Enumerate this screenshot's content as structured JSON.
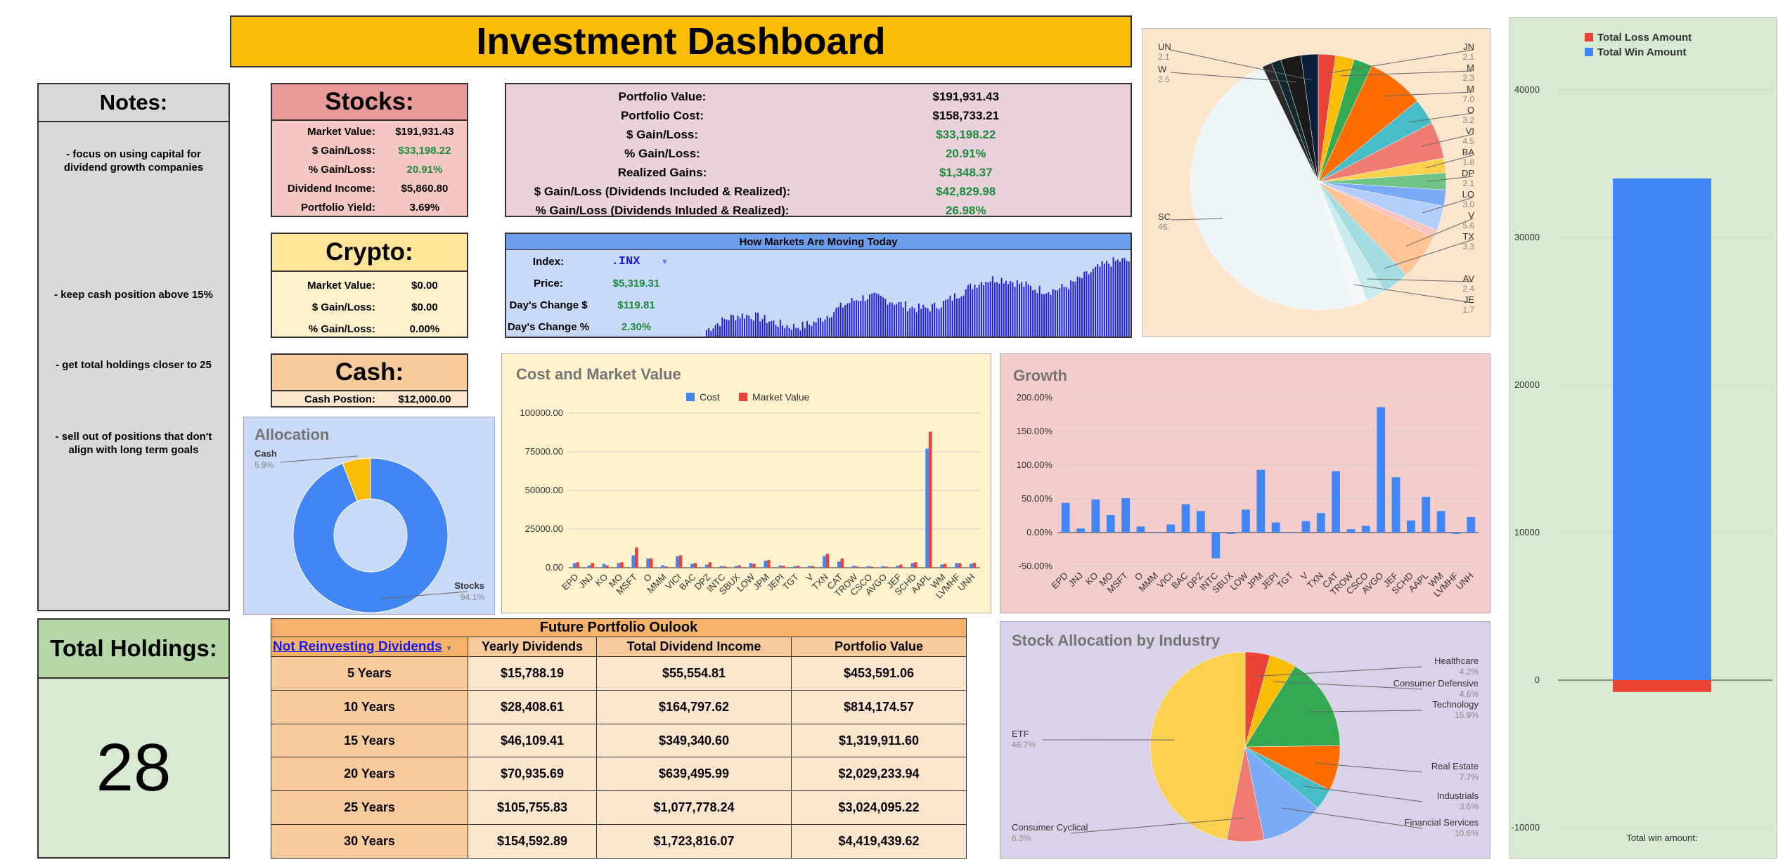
{
  "title": "Investment Dashboard",
  "notes": {
    "heading": "Notes:",
    "items": [
      "- focus on using capital for dividend growth companies",
      "- keep cash position above 15%",
      "- get total holdings closer to 25",
      "- sell out of positions that don't align with long term goals"
    ]
  },
  "total_holdings": {
    "label": "Total Holdings:",
    "value": "28"
  },
  "stocks": {
    "heading": "Stocks:",
    "rows": [
      {
        "k": "Market Value:",
        "v": "$191,931.43"
      },
      {
        "k": "$ Gain/Loss:",
        "v": "$33,198.22"
      },
      {
        "k": "% Gain/Loss:",
        "v": "20.91%"
      },
      {
        "k": "Dividend Income:",
        "v": "$5,860.80"
      },
      {
        "k": "Portfolio Yield:",
        "v": "3.69%"
      }
    ]
  },
  "crypto": {
    "heading": "Crypto:",
    "rows": [
      {
        "k": "Market Value:",
        "v": "$0.00"
      },
      {
        "k": "$ Gain/Loss:",
        "v": "$0.00"
      },
      {
        "k": "% Gain/Loss:",
        "v": "0.00%"
      }
    ]
  },
  "cash": {
    "heading": "Cash:",
    "k": "Cash Postion:",
    "v": "$12,000.00"
  },
  "portfolio": {
    "rows": [
      {
        "k": "Portfolio Value:",
        "v": "$191,931.43"
      },
      {
        "k": "Portfolio Cost:",
        "v": "$158,733.21"
      },
      {
        "k": "$ Gain/Loss:",
        "v": "$33,198.22"
      },
      {
        "k": "% Gain/Loss:",
        "v": "20.91%"
      },
      {
        "k": "Realized Gains:",
        "v": "$1,348.37"
      },
      {
        "k": "$ Gain/Loss (Dividends Included & Realized):",
        "v": "$42,829.98"
      },
      {
        "k": "% Gain/Loss (Dividends Inluded & Realized):",
        "v": "26.98%"
      }
    ]
  },
  "markets": {
    "title": "How Markets Are Moving Today",
    "rows": [
      {
        "k": "Index:",
        "v": ".INX"
      },
      {
        "k": "Price:",
        "v": "$5,319.31"
      },
      {
        "k": "Day's Change $",
        "v": "$119.81"
      },
      {
        "k": "Day's Change %",
        "v": "2.30%"
      }
    ]
  },
  "future": {
    "title": "Future Portfolio Oulook",
    "dropdown": "Not Reinvesting Dividends",
    "headers": [
      "Yearly Dividends",
      "Total Dividend Income",
      "Portfolio Value"
    ],
    "rows": [
      [
        "5 Years",
        "$15,788.19",
        "$55,554.81",
        "$453,591.06"
      ],
      [
        "10 Years",
        "$28,408.61",
        "$164,797.62",
        "$814,174.57"
      ],
      [
        "15 Years",
        "$46,109.41",
        "$349,340.60",
        "$1,319,911.60"
      ],
      [
        "20 Years",
        "$70,935.69",
        "$639,495.99",
        "$2,029,233.94"
      ],
      [
        "25 Years",
        "$105,755.83",
        "$1,077,778.24",
        "$3,024,095.22"
      ],
      [
        "30 Years",
        "$154,592.89",
        "$1,723,816.07",
        "$4,419,439.62"
      ]
    ]
  },
  "colors": {
    "blue": "#4285f4",
    "red": "#ea4335",
    "yellow": "#fbbc04",
    "green": "#34a853",
    "market_bar": "#1a1ae6"
  },
  "chart_data": [
    {
      "type": "pie",
      "id": "allocation",
      "title": "Allocation",
      "donut": true,
      "slices": [
        {
          "label": "Cash",
          "value": 5.9,
          "pct_label": "5.9%",
          "color": "#fbbc04"
        },
        {
          "label": "Stocks",
          "value": 94.1,
          "pct_label": "94.1%",
          "color": "#4285f4"
        }
      ]
    },
    {
      "type": "bar",
      "id": "cost_market",
      "title": "Cost and Market Value",
      "legend": "top",
      "ylim": [
        0,
        100000
      ],
      "yticks": [
        "0.00",
        "25000.00",
        "50000.00",
        "75000.00",
        "100000.00"
      ],
      "categories": [
        "EPD",
        "JNJ",
        "KO",
        "MO",
        "MSFT",
        "O",
        "MMM",
        "VICI",
        "BAC",
        "DPZ",
        "INTC",
        "SBUX",
        "LOW",
        "JPM",
        "JEPI",
        "TGT",
        "V",
        "TXN",
        "CAT",
        "TROW",
        "CSCO",
        "AVGO",
        "JEF",
        "SCHD",
        "AAPL",
        "WM",
        "LVMHF",
        "UNH"
      ],
      "series": [
        {
          "name": "Cost",
          "color": "#4285f4",
          "values": [
            3000,
            1500,
            2500,
            3000,
            8000,
            6000,
            1500,
            7500,
            2500,
            2000,
            1000,
            1000,
            3000,
            4500,
            1500,
            1000,
            1200,
            7500,
            4000,
            1200,
            1000,
            1000,
            1200,
            3000,
            77000,
            2000,
            3000,
            2500
          ]
        },
        {
          "name": "Market Value",
          "color": "#ea4335",
          "values": [
            3500,
            3000,
            1500,
            3500,
            13000,
            6000,
            800,
            8000,
            3000,
            3500,
            800,
            1500,
            2500,
            5000,
            1200,
            1200,
            1000,
            9000,
            6000,
            800,
            700,
            700,
            2000,
            3500,
            88000,
            2500,
            3000,
            3000
          ]
        }
      ]
    },
    {
      "type": "bar",
      "id": "growth",
      "title": "Growth",
      "ylim": [
        -50,
        200
      ],
      "yticks": [
        "-50.00%",
        "0.00%",
        "50.00%",
        "100.00%",
        "150.00%",
        "200.00%"
      ],
      "categories": [
        "EPD",
        "JNJ",
        "KO",
        "MO",
        "MSFT",
        "O",
        "MMM",
        "VICI",
        "BAC",
        "DPZ",
        "INTC",
        "SBUX",
        "LOW",
        "JPM",
        "JEPI",
        "TGT",
        "V",
        "TXN",
        "CAT",
        "TROW",
        "CSCO",
        "AVGO",
        "JEF",
        "SCHD",
        "AAPL",
        "WM",
        "LVMHF",
        "UNH"
      ],
      "series": [
        {
          "name": "Growth",
          "color": "#4285f4",
          "values": [
            44,
            6,
            49,
            26,
            51,
            9,
            -1,
            12,
            42,
            32,
            -38,
            -2,
            34,
            93,
            15,
            -1,
            17,
            29,
            91,
            5,
            10,
            186,
            82,
            18,
            53,
            32,
            -2,
            23
          ]
        }
      ]
    },
    {
      "type": "pie",
      "id": "holdings_pie",
      "slices": [
        {
          "label": "JN",
          "value": 2.1,
          "pct_label": "2.1",
          "color": "#ea4335"
        },
        {
          "label": "M",
          "value": 2.3,
          "pct_label": "2.3",
          "color": "#fbbc04"
        },
        {
          "label": "",
          "value": 2.3,
          "pct_label": "",
          "color": "#34a853"
        },
        {
          "label": "M",
          "value": 7.0,
          "pct_label": "7.0",
          "color": "#ff6d01"
        },
        {
          "label": "O",
          "value": 3.2,
          "pct_label": "3.2",
          "color": "#46bdc6"
        },
        {
          "label": "VI",
          "value": 4.5,
          "pct_label": "4.5",
          "color": "#f07b72"
        },
        {
          "label": "BA",
          "value": 1.8,
          "pct_label": "1.8",
          "color": "#fcd04f"
        },
        {
          "label": "DP",
          "value": 2.1,
          "pct_label": "2.1",
          "color": "#71c287"
        },
        {
          "label": "",
          "value": 2.0,
          "pct_label": "",
          "color": "#7baaf7"
        },
        {
          "label": "LO",
          "value": 3.0,
          "pct_label": "3.0",
          "color": "#b3cefb"
        },
        {
          "label": "",
          "value": 1.0,
          "pct_label": "",
          "color": "#f7c6c0"
        },
        {
          "label": "V",
          "value": 5.6,
          "pct_label": "5.6",
          "color": "#ffc395"
        },
        {
          "label": "TX",
          "value": 3.3,
          "pct_label": "3.3",
          "color": "#a3dde2"
        },
        {
          "label": "AV",
          "value": 2.4,
          "pct_label": "2.4",
          "color": "#c9ebee"
        },
        {
          "label": "JE",
          "value": 1.7,
          "pct_label": "1.7",
          "color": "#f4f8f9"
        },
        {
          "label": "SC",
          "value": 46.0,
          "pct_label": "46.",
          "color": "#eef5f8"
        },
        {
          "label": "",
          "value": 1.2,
          "pct_label": "",
          "color": "#2a2a2a"
        },
        {
          "label": "",
          "value": 1.2,
          "pct_label": "",
          "color": "#0f2a2e"
        },
        {
          "label": "W",
          "value": 2.5,
          "pct_label": "2.5",
          "color": "#1a1a1a"
        },
        {
          "label": "UN",
          "value": 2.1,
          "pct_label": "2.1",
          "color": "#0b1f3a"
        }
      ]
    },
    {
      "type": "pie",
      "id": "industry",
      "title": "Stock Allocation by Industry",
      "slices": [
        {
          "label": "Healthcare",
          "value": 4.2,
          "pct_label": "4.2%",
          "color": "#ea4335"
        },
        {
          "label": "Consumer Defensive",
          "value": 4.6,
          "pct_label": "4.6%",
          "color": "#fbbc04"
        },
        {
          "label": "Technology",
          "value": 15.9,
          "pct_label": "15.9%",
          "color": "#34a853"
        },
        {
          "label": "Real Estate",
          "value": 7.7,
          "pct_label": "7.7%",
          "color": "#ff6d01"
        },
        {
          "label": "Industrials",
          "value": 3.6,
          "pct_label": "3.6%",
          "color": "#46bdc6"
        },
        {
          "label": "Financial Services",
          "value": 10.6,
          "pct_label": "10.6%",
          "color": "#7baaf7"
        },
        {
          "label": "Consumer Cyclical",
          "value": 6.3,
          "pct_label": "6.3%",
          "color": "#f07b72"
        },
        {
          "label": "ETF",
          "value": 46.7,
          "pct_label": "46.7%",
          "color": "#fcd04f"
        }
      ]
    },
    {
      "type": "bar",
      "id": "win_loss",
      "xlabel": "Total win amount:",
      "ylim": [
        -12000,
        43000
      ],
      "yticks": [
        "-10000",
        "0",
        "10000",
        "20000",
        "30000",
        "40000"
      ],
      "series": [
        {
          "name": "Total Loss Amount",
          "color": "#ea4335",
          "values": [
            -800
          ]
        },
        {
          "name": "Total Win Amount",
          "color": "#4285f4",
          "values": [
            34000
          ]
        }
      ]
    },
    {
      "type": "bar",
      "id": "market_today",
      "series": [
        {
          "name": "Index",
          "color": "#1a1ae6"
        }
      ]
    }
  ]
}
